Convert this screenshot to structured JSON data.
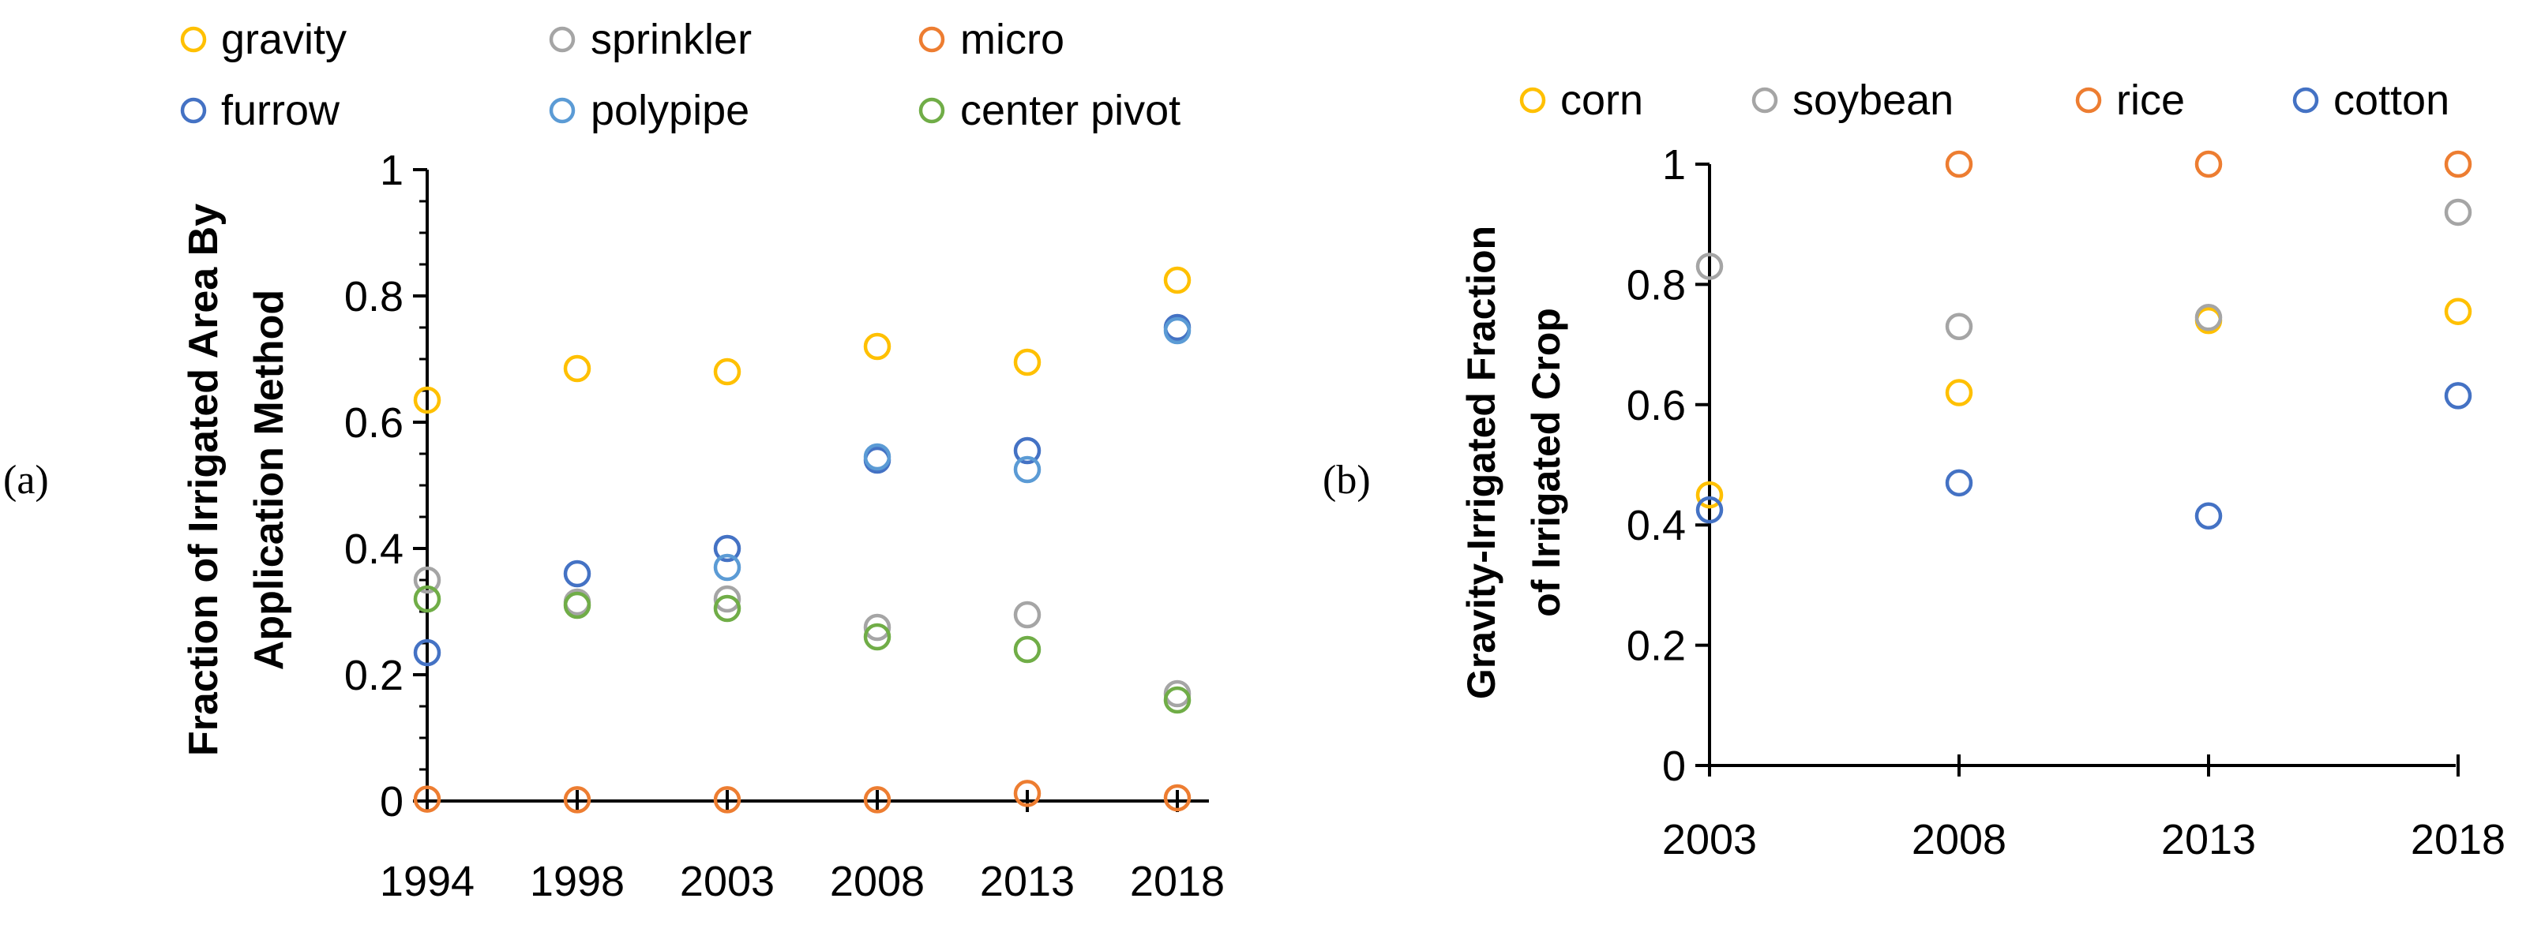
{
  "chart_data": [
    {
      "type": "scatter",
      "panel_label": "(a)",
      "ylabel_lines": [
        "Fraction of Irrigated Area By",
        "Application Method"
      ],
      "xlabel": "",
      "categories": [
        "1994",
        "1998",
        "2003",
        "2008",
        "2013",
        "2018"
      ],
      "ylim": [
        0,
        1
      ],
      "yticks": [
        0,
        0.2,
        0.4,
        0.6,
        0.8,
        1
      ],
      "ytick_labels": [
        "0",
        "0.2",
        "0.4",
        "0.6",
        "0.8",
        "1"
      ],
      "grid": false,
      "legend_position": "top",
      "series": [
        {
          "name": "gravity",
          "color": "#FFC000",
          "values": [
            0.635,
            0.685,
            0.68,
            0.72,
            0.695,
            0.825
          ]
        },
        {
          "name": "sprinkler",
          "color": "#A5A5A5",
          "values": [
            0.35,
            0.315,
            0.32,
            0.275,
            0.295,
            0.17
          ]
        },
        {
          "name": "micro",
          "color": "#ED7D31",
          "values": [
            0.003,
            0.002,
            0.002,
            0.002,
            0.012,
            0.005
          ]
        },
        {
          "name": "furrow",
          "color": "#4472C4",
          "values": [
            0.235,
            0.36,
            0.4,
            0.54,
            0.555,
            0.75
          ]
        },
        {
          "name": "polypipe",
          "color": "#5B9BD5",
          "values": [
            null,
            null,
            0.37,
            0.545,
            0.525,
            0.745
          ]
        },
        {
          "name": "center pivot",
          "color": "#70AD47",
          "values": [
            0.32,
            0.31,
            0.305,
            0.26,
            0.24,
            0.16
          ]
        }
      ]
    },
    {
      "type": "scatter",
      "panel_label": "(b)",
      "ylabel_lines": [
        "Gravity-Irrigated Fraction",
        "of Irrigated Crop"
      ],
      "xlabel": "",
      "categories": [
        "2003",
        "2008",
        "2013",
        "2018"
      ],
      "ylim": [
        0,
        1
      ],
      "yticks": [
        0,
        0.2,
        0.4,
        0.6,
        0.8,
        1
      ],
      "ytick_labels": [
        "0",
        "0.2",
        "0.4",
        "0.6",
        "0.8",
        "1"
      ],
      "grid": false,
      "legend_position": "top",
      "series": [
        {
          "name": "corn",
          "color": "#FFC000",
          "values": [
            0.45,
            0.62,
            0.74,
            0.755
          ]
        },
        {
          "name": "soybean",
          "color": "#A5A5A5",
          "values": [
            0.83,
            0.73,
            0.745,
            0.92
          ]
        },
        {
          "name": "rice",
          "color": "#ED7D31",
          "values": [
            null,
            1.0,
            1.0,
            1.0
          ]
        },
        {
          "name": "cotton",
          "color": "#4472C4",
          "values": [
            0.425,
            0.47,
            0.415,
            0.615
          ]
        }
      ]
    }
  ]
}
